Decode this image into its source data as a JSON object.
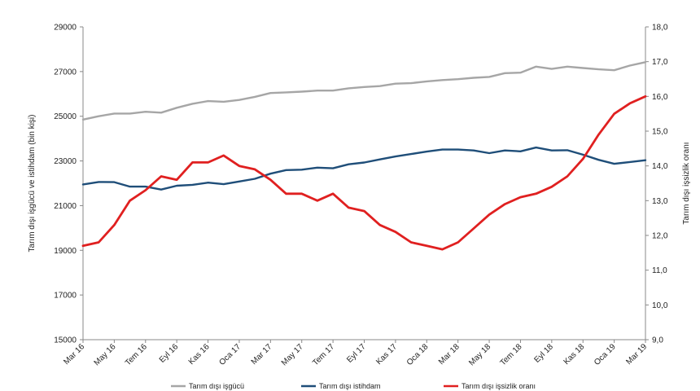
{
  "chart_data": {
    "type": "line",
    "title": "",
    "ylabel_left": "Tarım dışı işgücü ve istihdam (bin kişi)",
    "ylabel_right": "Tarım dışı işsizlik oranı",
    "ylim_left": [
      15000,
      29000
    ],
    "ylim_right": [
      9.0,
      18.0
    ],
    "yticks_left": [
      "15000",
      "17000",
      "19000",
      "21000",
      "23000",
      "25000",
      "27000",
      "29000"
    ],
    "yticks_right": [
      "9,0",
      "10,0",
      "11,0",
      "12,0",
      "13,0",
      "14,0",
      "15,0",
      "16,0",
      "17,0",
      "18,0"
    ],
    "x": [
      "Mar 16",
      "Nis 16",
      "May 16",
      "Haz 16",
      "Tem 16",
      "Ağu 16",
      "Eyl 16",
      "Eki 16",
      "Kas 16",
      "Ara 16",
      "Oca 17",
      "Şub 17",
      "Mar 17",
      "Nis 17",
      "May 17",
      "Haz 17",
      "Tem 17",
      "Ağu 17",
      "Eyl 17",
      "Eki 17",
      "Kas 17",
      "Ara 17",
      "Oca 18",
      "Şub 18",
      "Mar 18",
      "Nis 18",
      "May 18",
      "Haz 18",
      "Tem 18",
      "Ağu 18",
      "Eyl 18",
      "Eki 18",
      "Kas 18",
      "Ara 18",
      "Oca 19",
      "Şub 19",
      "Mar 19"
    ],
    "xtick_labels": [
      "Mar 16",
      "May 16",
      "Tem 16",
      "Eyl 16",
      "Kas 16",
      "Oca 17",
      "Mar 17",
      "May 17",
      "Tem 17",
      "Eyl 17",
      "Kas 17",
      "Oca 18",
      "Mar 18",
      "May 18",
      "Tem 18",
      "Eyl 18",
      "Kas 18",
      "Oca 19",
      "Mar 19"
    ],
    "series": [
      {
        "name": "Tarım dışı işgücü",
        "axis": "left",
        "color": "#a6a6a6",
        "values": [
          24850,
          25000,
          25120,
          25120,
          25200,
          25160,
          25380,
          25560,
          25680,
          25650,
          25730,
          25870,
          26040,
          26070,
          26100,
          26150,
          26150,
          26250,
          26310,
          26350,
          26460,
          26480,
          26560,
          26620,
          26660,
          26720,
          26760,
          26930,
          26950,
          27220,
          27120,
          27220,
          27160,
          27100,
          27060,
          27270,
          27420
        ]
      },
      {
        "name": "Tarım dışı istihdam",
        "axis": "left",
        "color": "#1f4e79",
        "values": [
          21950,
          22060,
          22050,
          21850,
          21850,
          21720,
          21890,
          21930,
          22030,
          21960,
          22080,
          22200,
          22430,
          22590,
          22610,
          22700,
          22670,
          22850,
          22930,
          23070,
          23200,
          23310,
          23420,
          23510,
          23510,
          23470,
          23350,
          23470,
          23430,
          23600,
          23470,
          23480,
          23280,
          23050,
          22870,
          22950,
          23030
        ]
      },
      {
        "name": "Tarım dışı işsizlik oranı",
        "axis": "right",
        "color": "#e02020",
        "values": [
          11.7,
          11.8,
          12.3,
          13.0,
          13.3,
          13.7,
          13.6,
          14.1,
          14.1,
          14.3,
          14.0,
          13.9,
          13.6,
          13.2,
          13.2,
          13.0,
          13.2,
          12.8,
          12.7,
          12.3,
          12.1,
          11.8,
          11.7,
          11.6,
          11.8,
          12.2,
          12.6,
          12.9,
          13.1,
          13.2,
          13.4,
          13.7,
          14.2,
          14.9,
          15.5,
          15.8,
          16.0
        ]
      }
    ],
    "grid": false,
    "legend_position": "bottom"
  }
}
